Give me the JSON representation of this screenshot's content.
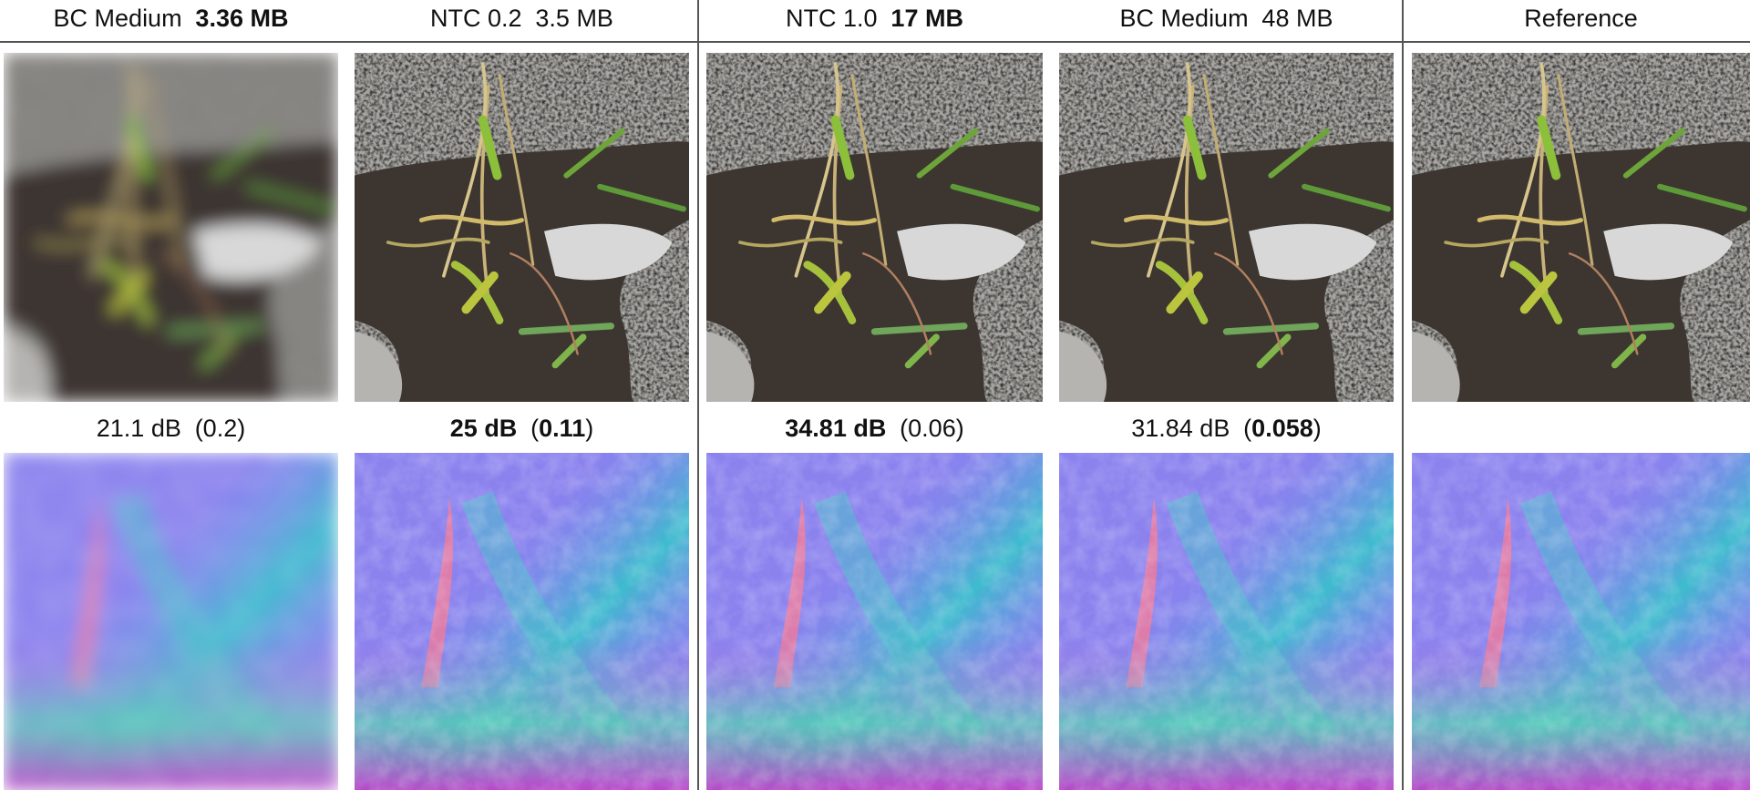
{
  "columns": [
    {
      "header": [
        [
          {
            "text": "BC Medium"
          }
        ],
        [
          {
            "text": "3.36 MB",
            "bold": true
          }
        ]
      ],
      "metric": [
        [
          {
            "text": "21.1 dB"
          }
        ],
        [
          {
            "text": "(0.2)"
          }
        ]
      ]
    },
    {
      "header": [
        [
          {
            "text": "NTC 0.2"
          }
        ],
        [
          {
            "text": "3.5 MB"
          }
        ]
      ],
      "metric": [
        [
          {
            "text": "25 dB",
            "bold": true
          }
        ],
        [
          {
            "text": "("
          },
          {
            "text": "0.11",
            "bold": true
          },
          {
            "text": ")"
          }
        ]
      ]
    },
    {
      "header": [
        [
          {
            "text": "NTC 1.0"
          }
        ],
        [
          {
            "text": "17 MB",
            "bold": true
          }
        ]
      ],
      "metric": [
        [
          {
            "text": "34.81 dB",
            "bold": true
          }
        ],
        [
          {
            "text": "(0.06)"
          }
        ]
      ]
    },
    {
      "header": [
        [
          {
            "text": "BC Medium"
          }
        ],
        [
          {
            "text": "48 MB"
          }
        ]
      ],
      "metric": [
        [
          {
            "text": "31.84 dB"
          }
        ],
        [
          {
            "text": "("
          },
          {
            "text": "0.058",
            "bold": true
          },
          {
            "text": ")"
          }
        ]
      ]
    },
    {
      "header": [
        [
          {
            "text": "Reference"
          }
        ]
      ],
      "metric": []
    }
  ]
}
